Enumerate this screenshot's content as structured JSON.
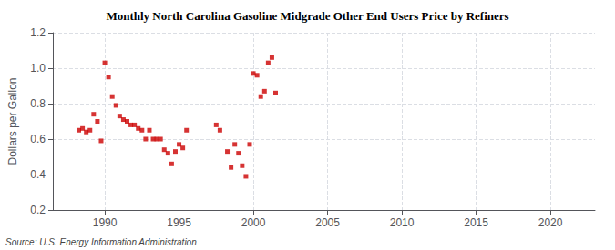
{
  "chart_data": {
    "type": "scatter",
    "title": "Monthly North Carolina Gasoline Midgrade Other End Users Price by Refiners",
    "ylabel": "Dollars per Gallon",
    "source": "Source: U.S. Energy Information Administration",
    "color": "#cc0000",
    "marker": "square",
    "grid": true,
    "xlim": [
      1986.5,
      2023
    ],
    "ylim": [
      0.2,
      1.2
    ],
    "xticks": [
      1990,
      1995,
      2000,
      2005,
      2010,
      2015,
      2020
    ],
    "yticks": [
      0.2,
      0.4,
      0.6,
      0.8,
      {
        "value": 1.0,
        "label": "1.0"
      },
      1.2
    ],
    "x": [
      1988.25,
      1988.5,
      1988.75,
      1989.0,
      1989.25,
      1989.5,
      1989.75,
      1990.0,
      1990.25,
      1990.5,
      1990.75,
      1991.0,
      1991.25,
      1991.5,
      1991.75,
      1992.0,
      1992.25,
      1992.5,
      1992.75,
      1993.0,
      1993.25,
      1993.5,
      1993.75,
      1994.0,
      1994.25,
      1994.5,
      1994.75,
      1995.0,
      1995.25,
      1995.5,
      1997.5,
      1997.75,
      1998.25,
      1998.5,
      1998.75,
      1999.0,
      1999.25,
      1999.5,
      1999.75,
      2000.0,
      2000.25,
      2000.5,
      2000.75,
      2001.0,
      2001.25,
      2001.5
    ],
    "values": [
      0.65,
      0.66,
      0.64,
      0.65,
      0.74,
      0.7,
      0.59,
      1.03,
      0.95,
      0.84,
      0.79,
      0.73,
      0.71,
      0.7,
      0.68,
      0.68,
      0.66,
      0.65,
      0.6,
      0.65,
      0.6,
      0.6,
      0.6,
      0.54,
      0.52,
      0.46,
      0.53,
      0.57,
      0.55,
      0.65,
      0.68,
      0.65,
      0.53,
      0.44,
      0.57,
      0.52,
      0.45,
      0.39,
      0.57,
      0.97,
      0.96,
      0.84,
      0.87,
      1.03,
      1.06,
      0.86
    ]
  }
}
